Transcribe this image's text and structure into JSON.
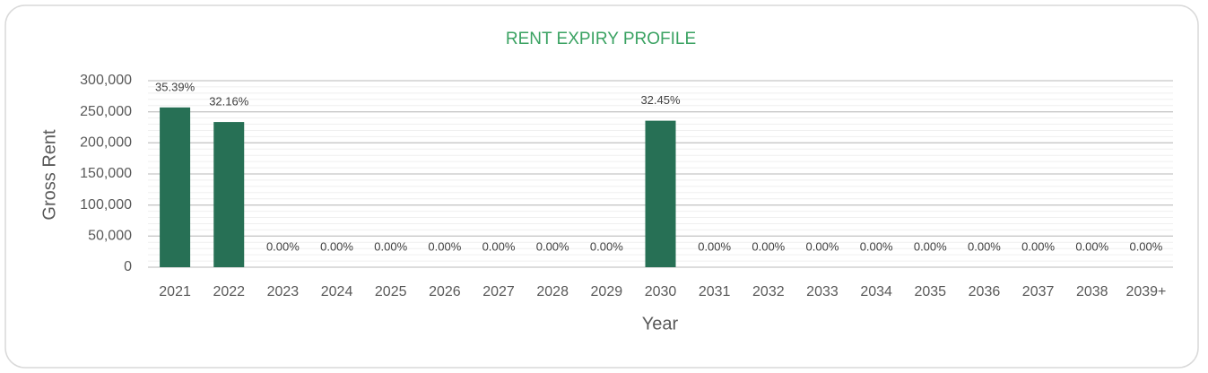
{
  "chart_data": {
    "type": "bar",
    "title": "RENT EXPIRY PROFILE",
    "x_label": "Year",
    "y_label": "Gross Rent",
    "categories": [
      "2021",
      "2022",
      "2023",
      "2024",
      "2025",
      "2026",
      "2027",
      "2028",
      "2029",
      "2030",
      "2031",
      "2032",
      "2033",
      "2034",
      "2035",
      "2036",
      "2037",
      "2038",
      "2039+"
    ],
    "values": [
      257000,
      233550,
      0,
      0,
      0,
      0,
      0,
      0,
      0,
      235650,
      0,
      0,
      0,
      0,
      0,
      0,
      0,
      0,
      0
    ],
    "data_labels": [
      "35.39%",
      "32.16%",
      "0.00%",
      "0.00%",
      "0.00%",
      "0.00%",
      "0.00%",
      "0.00%",
      "0.00%",
      "32.45%",
      "0.00%",
      "0.00%",
      "0.00%",
      "0.00%",
      "0.00%",
      "0.00%",
      "0.00%",
      "0.00%",
      "0.00%"
    ],
    "color": "#277055",
    "ylim": [
      0,
      300000
    ],
    "yticks": [
      0,
      {
        "value": 50000,
        "label": "50,000"
      },
      {
        "value": 100000,
        "label": "100,000"
      },
      {
        "value": 150000,
        "label": "150,000"
      },
      {
        "value": 200000,
        "label": "200,000"
      },
      {
        "value": 250000,
        "label": "250,000"
      },
      {
        "value": 300000,
        "label": "300,000"
      }
    ],
    "grid": true,
    "minor_grid": true
  }
}
